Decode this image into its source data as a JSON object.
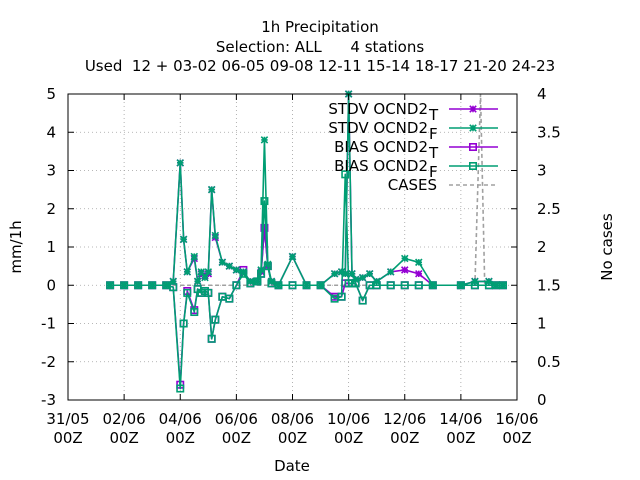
{
  "chart_data": {
    "type": "line",
    "title_lines": [
      "1h Precipitation",
      "Selection: ALL      4 stations",
      "Used  12 + 03-02 06-05 09-08 12-11 15-14 18-17 21-20 24-23"
    ],
    "xlabel": "Date",
    "ylabel": "mm/1h",
    "y2label": "No cases",
    "xlim": [
      0,
      16
    ],
    "ylim": [
      -3,
      5
    ],
    "y2lim": [
      0,
      4
    ],
    "grid": true,
    "legend_position": "top-right",
    "x_ticks": [
      {
        "x": 0,
        "line1": "31/05",
        "line2": "00Z"
      },
      {
        "x": 2,
        "line1": "02/06",
        "line2": "00Z"
      },
      {
        "x": 4,
        "line1": "04/06",
        "line2": "00Z"
      },
      {
        "x": 6,
        "line1": "06/06",
        "line2": "00Z"
      },
      {
        "x": 8,
        "line1": "08/06",
        "line2": "00Z"
      },
      {
        "x": 10,
        "line1": "10/06",
        "line2": "00Z"
      },
      {
        "x": 12,
        "line1": "12/06",
        "line2": "00Z"
      },
      {
        "x": 14,
        "line1": "14/06",
        "line2": "00Z"
      },
      {
        "x": 16,
        "line1": "16/06",
        "line2": "00Z"
      }
    ],
    "y_ticks": [
      -3,
      -2,
      -1,
      0,
      1,
      2,
      3,
      4,
      5
    ],
    "y2_ticks": [
      "0",
      "0.5",
      "1",
      "1.5",
      "2",
      "2.5",
      "3",
      "3.5",
      "4"
    ],
    "series": [
      {
        "name": "STDV OCND2",
        "sub": "T",
        "color": "#9400d3",
        "marker": "star",
        "axis": "y",
        "points": [
          [
            1.5,
            0
          ],
          [
            2,
            0
          ],
          [
            2.5,
            0
          ],
          [
            3,
            0
          ],
          [
            3.5,
            0
          ],
          [
            3.75,
            0.1
          ],
          [
            4,
            3.2
          ],
          [
            4.12,
            1.2
          ],
          [
            4.25,
            0.35
          ],
          [
            4.5,
            0.7
          ],
          [
            4.62,
            0.1
          ],
          [
            4.75,
            0.3
          ],
          [
            4.88,
            0.25
          ],
          [
            5,
            0.3
          ],
          [
            5.12,
            2.5
          ],
          [
            5.25,
            1.25
          ],
          [
            5.5,
            0.6
          ],
          [
            5.75,
            0.5
          ],
          [
            6,
            0.4
          ],
          [
            6.25,
            0.35
          ],
          [
            6.5,
            0.1
          ],
          [
            6.75,
            0.1
          ],
          [
            6.88,
            0.35
          ],
          [
            7,
            1.5
          ],
          [
            7.12,
            0.5
          ],
          [
            7.25,
            0.1
          ],
          [
            7.5,
            0
          ],
          [
            8,
            0.75
          ],
          [
            8.5,
            0
          ],
          [
            9,
            0
          ],
          [
            9.5,
            0.3
          ],
          [
            9.75,
            0.35
          ],
          [
            9.88,
            0.3
          ],
          [
            10,
            5
          ],
          [
            10.12,
            0.3
          ],
          [
            10.25,
            0.15
          ],
          [
            10.5,
            0.2
          ],
          [
            10.75,
            0.3
          ],
          [
            11,
            0.1
          ],
          [
            11.5,
            0.35
          ],
          [
            12,
            0.4
          ],
          [
            12.5,
            0.3
          ],
          [
            13,
            0
          ],
          [
            14,
            0
          ],
          [
            14.5,
            0.1
          ],
          [
            15,
            0.1
          ],
          [
            15.25,
            0
          ],
          [
            15.5,
            0
          ]
        ]
      },
      {
        "name": "STDV OCND2",
        "sub": "F",
        "color": "#009e73",
        "marker": "star",
        "axis": "y",
        "points": [
          [
            1.5,
            0
          ],
          [
            2,
            0
          ],
          [
            2.5,
            0
          ],
          [
            3,
            0
          ],
          [
            3.5,
            0
          ],
          [
            3.75,
            0.1
          ],
          [
            4,
            3.2
          ],
          [
            4.12,
            1.2
          ],
          [
            4.25,
            0.35
          ],
          [
            4.5,
            0.75
          ],
          [
            4.62,
            0.1
          ],
          [
            4.75,
            0.35
          ],
          [
            4.88,
            0.2
          ],
          [
            5,
            0.35
          ],
          [
            5.12,
            2.5
          ],
          [
            5.25,
            1.3
          ],
          [
            5.5,
            0.6
          ],
          [
            5.75,
            0.5
          ],
          [
            6,
            0.4
          ],
          [
            6.25,
            0.35
          ],
          [
            6.5,
            0.1
          ],
          [
            6.75,
            0.1
          ],
          [
            6.88,
            0.4
          ],
          [
            7,
            3.8
          ],
          [
            7.12,
            0.55
          ],
          [
            7.25,
            0.1
          ],
          [
            7.5,
            0
          ],
          [
            8,
            0.75
          ],
          [
            8.5,
            0
          ],
          [
            9,
            0
          ],
          [
            9.5,
            0.3
          ],
          [
            9.75,
            0.35
          ],
          [
            9.88,
            0.3
          ],
          [
            10,
            5
          ],
          [
            10.12,
            0.3
          ],
          [
            10.25,
            0.15
          ],
          [
            10.5,
            0.2
          ],
          [
            10.75,
            0.3
          ],
          [
            11,
            0.1
          ],
          [
            11.5,
            0.35
          ],
          [
            12,
            0.7
          ],
          [
            12.5,
            0.6
          ],
          [
            13,
            0
          ],
          [
            14,
            0
          ],
          [
            14.5,
            0.1
          ],
          [
            15,
            0.1
          ],
          [
            15.25,
            0
          ],
          [
            15.5,
            0
          ]
        ]
      },
      {
        "name": "BIAS OCND2",
        "sub": "T",
        "color": "#9400d3",
        "marker": "square",
        "axis": "y",
        "points": [
          [
            1.5,
            0
          ],
          [
            2,
            0
          ],
          [
            2.5,
            0
          ],
          [
            3,
            0
          ],
          [
            3.5,
            0
          ],
          [
            3.75,
            -0.05
          ],
          [
            4,
            -2.6
          ],
          [
            4.12,
            -1
          ],
          [
            4.25,
            -0.15
          ],
          [
            4.5,
            -0.65
          ],
          [
            4.62,
            -0.1
          ],
          [
            4.75,
            -0.2
          ],
          [
            4.88,
            -0.15
          ],
          [
            5,
            -0.2
          ],
          [
            5.12,
            -1.4
          ],
          [
            5.25,
            -0.9
          ],
          [
            5.5,
            -0.3
          ],
          [
            5.75,
            -0.35
          ],
          [
            6,
            0
          ],
          [
            6.25,
            0.4
          ],
          [
            6.5,
            0.05
          ],
          [
            6.75,
            0.1
          ],
          [
            6.88,
            0.3
          ],
          [
            7,
            1.5
          ],
          [
            7.12,
            0.5
          ],
          [
            7.25,
            0.05
          ],
          [
            7.5,
            0
          ],
          [
            8,
            0
          ],
          [
            8.5,
            0
          ],
          [
            9,
            0
          ],
          [
            9.5,
            -0.3
          ],
          [
            9.75,
            -0.3
          ],
          [
            9.88,
            0.05
          ],
          [
            10,
            0.05
          ],
          [
            10.12,
            0.05
          ],
          [
            10.25,
            0.05
          ],
          [
            10.5,
            -0.4
          ],
          [
            10.75,
            0
          ],
          [
            11,
            0
          ],
          [
            11.5,
            0
          ],
          [
            12,
            0
          ],
          [
            12.5,
            0
          ],
          [
            13,
            0
          ],
          [
            14,
            0
          ],
          [
            14.5,
            0
          ],
          [
            15,
            0
          ],
          [
            15.25,
            0
          ],
          [
            15.5,
            0
          ]
        ]
      },
      {
        "name": "BIAS OCND2",
        "sub": "F",
        "color": "#009e73",
        "marker": "square",
        "axis": "y",
        "points": [
          [
            1.5,
            0
          ],
          [
            2,
            0
          ],
          [
            2.5,
            0
          ],
          [
            3,
            0
          ],
          [
            3.5,
            0
          ],
          [
            3.75,
            -0.05
          ],
          [
            4,
            -2.7
          ],
          [
            4.12,
            -1
          ],
          [
            4.25,
            -0.2
          ],
          [
            4.5,
            -0.7
          ],
          [
            4.62,
            -0.1
          ],
          [
            4.75,
            -0.2
          ],
          [
            4.88,
            -0.15
          ],
          [
            5,
            -0.2
          ],
          [
            5.12,
            -1.4
          ],
          [
            5.25,
            -0.9
          ],
          [
            5.5,
            -0.3
          ],
          [
            5.75,
            -0.35
          ],
          [
            6,
            0
          ],
          [
            6.25,
            0.3
          ],
          [
            6.5,
            0.05
          ],
          [
            6.75,
            0.1
          ],
          [
            6.88,
            0.3
          ],
          [
            7,
            2.2
          ],
          [
            7.12,
            0.5
          ],
          [
            7.25,
            0.05
          ],
          [
            7.5,
            0
          ],
          [
            8,
            0
          ],
          [
            8.5,
            0
          ],
          [
            9,
            0
          ],
          [
            9.5,
            -0.35
          ],
          [
            9.75,
            -0.3
          ],
          [
            9.88,
            2.9
          ],
          [
            10,
            0.05
          ],
          [
            10.12,
            0.05
          ],
          [
            10.25,
            0.05
          ],
          [
            10.5,
            -0.4
          ],
          [
            10.75,
            0
          ],
          [
            11,
            0
          ],
          [
            11.5,
            0
          ],
          [
            12,
            0
          ],
          [
            12.5,
            0
          ],
          [
            13,
            0
          ],
          [
            14,
            0
          ],
          [
            14.5,
            0
          ],
          [
            15,
            0
          ],
          [
            15.25,
            0
          ],
          [
            15.5,
            0
          ]
        ]
      }
    ],
    "cases": {
      "name": "CASES",
      "color": "#a0a0a0",
      "axis": "y2",
      "points": [
        [
          1.5,
          1.5
        ],
        [
          2,
          1.5
        ],
        [
          3,
          1.5
        ],
        [
          4,
          1.5
        ],
        [
          5,
          1.5
        ],
        [
          6,
          1.5
        ],
        [
          7,
          1.5
        ],
        [
          8,
          1.5
        ],
        [
          9,
          1.5
        ],
        [
          10,
          1.5
        ],
        [
          11,
          1.5
        ],
        [
          12,
          1.5
        ],
        [
          13,
          1.5
        ],
        [
          14,
          1.5
        ],
        [
          14.5,
          1.5
        ],
        [
          14.7,
          4
        ],
        [
          14.85,
          1.5
        ],
        [
          15.5,
          1.5
        ]
      ]
    }
  }
}
